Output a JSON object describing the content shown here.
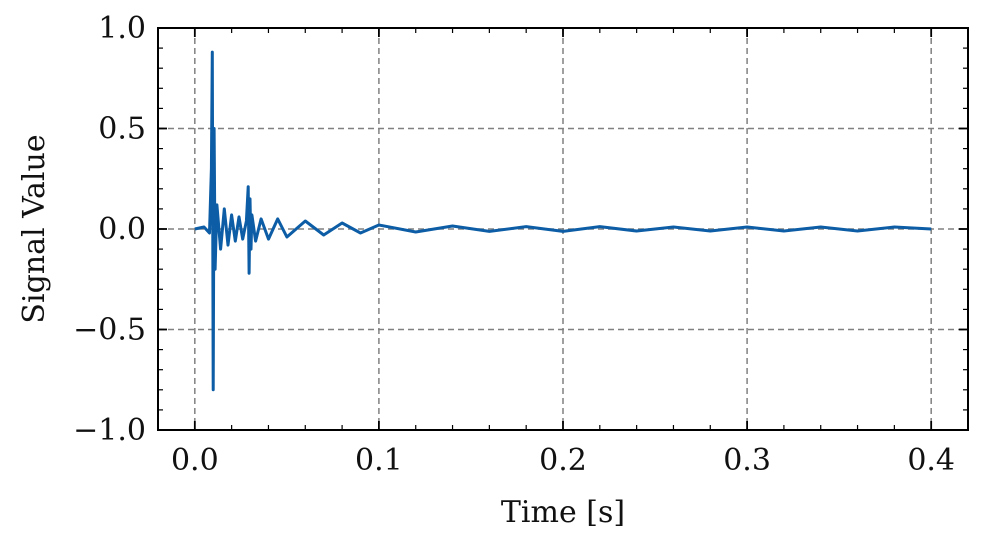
{
  "chart_data": {
    "type": "line",
    "title": "",
    "xlabel": "Time [s]",
    "ylabel": "Signal Value",
    "xlim": [
      -0.02,
      0.42
    ],
    "ylim": [
      -1.0,
      1.0
    ],
    "grid": true,
    "legend": "none",
    "line_color": "#0C5DA5",
    "grid_color": "#808080",
    "x_ticks": [
      0.0,
      0.1,
      0.2,
      0.3,
      0.4
    ],
    "x_tick_labels": [
      "0.0",
      "0.1",
      "0.2",
      "0.3",
      "0.4"
    ],
    "y_ticks": [
      -1.0,
      -0.5,
      0.0,
      0.5,
      1.0
    ],
    "y_tick_labels": [
      "−1.0",
      "−0.5",
      "0.0",
      "0.5",
      "1.0"
    ],
    "series": [
      {
        "x": [
          0.0,
          0.005,
          0.008,
          0.009,
          0.0095,
          0.01,
          0.0105,
          0.011,
          0.012,
          0.014,
          0.016,
          0.018,
          0.02,
          0.022,
          0.024,
          0.026,
          0.028,
          0.029,
          0.0295,
          0.03,
          0.0305,
          0.031,
          0.033,
          0.036,
          0.04,
          0.045,
          0.05,
          0.06,
          0.07,
          0.08,
          0.09,
          0.1,
          0.12,
          0.14,
          0.16,
          0.18,
          0.2,
          0.22,
          0.24,
          0.26,
          0.28,
          0.3,
          0.32,
          0.34,
          0.36,
          0.38,
          0.4
        ],
        "y": [
          0.0,
          0.01,
          -0.02,
          0.3,
          0.88,
          -0.8,
          0.5,
          -0.2,
          0.12,
          -0.1,
          0.1,
          -0.08,
          0.07,
          -0.06,
          0.06,
          -0.05,
          0.04,
          0.21,
          -0.22,
          0.15,
          -0.1,
          0.07,
          -0.06,
          0.05,
          -0.05,
          0.05,
          -0.04,
          0.04,
          -0.03,
          0.03,
          -0.02,
          0.02,
          -0.015,
          0.015,
          -0.012,
          0.012,
          -0.012,
          0.012,
          -0.01,
          0.01,
          -0.01,
          0.01,
          -0.01,
          0.01,
          -0.01,
          0.01,
          0.0
        ]
      }
    ]
  }
}
